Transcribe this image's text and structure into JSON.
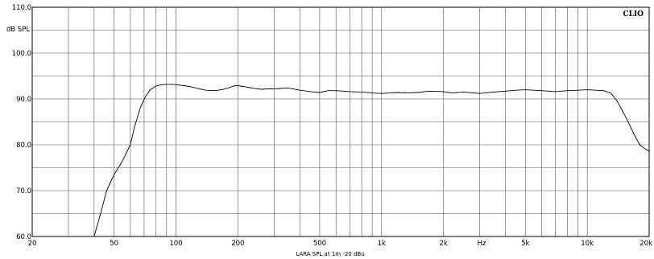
{
  "chart_data": {
    "type": "line",
    "brand": "CLIO",
    "title": "LARA SPL at 1m -20 dBu",
    "xlabel": "Hz",
    "ylabel": "dB SPL",
    "x_scale": "log",
    "xlim": [
      20,
      20000
    ],
    "ylim": [
      60,
      110
    ],
    "grid": true,
    "x_ticks": [
      {
        "value": 20,
        "label": "20"
      },
      {
        "value": 50,
        "label": "50"
      },
      {
        "value": 100,
        "label": "100"
      },
      {
        "value": 200,
        "label": "200"
      },
      {
        "value": 500,
        "label": "500"
      },
      {
        "value": 1000,
        "label": "1k"
      },
      {
        "value": 2000,
        "label": "2k"
      },
      {
        "value": 5000,
        "label": "5k"
      },
      {
        "value": 10000,
        "label": "10k"
      },
      {
        "value": 20000,
        "label": "20k"
      }
    ],
    "y_ticks": [
      {
        "value": 60,
        "label": "60.0"
      },
      {
        "value": 70,
        "label": "70.0"
      },
      {
        "value": 80,
        "label": "80.0"
      },
      {
        "value": 90,
        "label": "90.0"
      },
      {
        "value": 100,
        "label": "100.0"
      },
      {
        "value": 110,
        "label": "110.0"
      }
    ],
    "series": [
      {
        "color": "#000000",
        "x": [
          40,
          43,
          46,
          50,
          55,
          60,
          63,
          67,
          71,
          75,
          80,
          85,
          90,
          95,
          100,
          110,
          120,
          130,
          140,
          150,
          160,
          170,
          180,
          190,
          200,
          220,
          240,
          260,
          280,
          300,
          350,
          400,
          450,
          500,
          550,
          600,
          700,
          800,
          900,
          1000,
          1100,
          1200,
          1300,
          1500,
          1700,
          2000,
          2200,
          2500,
          2800,
          3000,
          3500,
          4000,
          4500,
          5000,
          5500,
          6000,
          6500,
          7000,
          8000,
          9000,
          10000,
          11000,
          12000,
          13000,
          14000,
          15000,
          16000,
          17000,
          18000,
          19000,
          20000
        ],
        "y": [
          60,
          65,
          70,
          73.5,
          76.5,
          80,
          84,
          88,
          90.5,
          92,
          92.8,
          93.1,
          93.2,
          93.2,
          93.1,
          92.9,
          92.6,
          92.2,
          91.9,
          91.8,
          91.9,
          92.1,
          92.4,
          92.8,
          92.9,
          92.6,
          92.3,
          92.1,
          92.2,
          92.2,
          92.4,
          91.9,
          91.6,
          91.4,
          91.8,
          91.8,
          91.6,
          91.5,
          91.3,
          91.2,
          91.3,
          91.4,
          91.3,
          91.4,
          91.7,
          91.6,
          91.3,
          91.5,
          91.3,
          91.2,
          91.5,
          91.7,
          91.9,
          92.0,
          91.9,
          91.8,
          91.7,
          91.6,
          91.8,
          91.9,
          92.0,
          91.9,
          91.8,
          91.3,
          89.5,
          87.0,
          84.5,
          82.0,
          80.0,
          79.2,
          78.6
        ]
      }
    ]
  }
}
